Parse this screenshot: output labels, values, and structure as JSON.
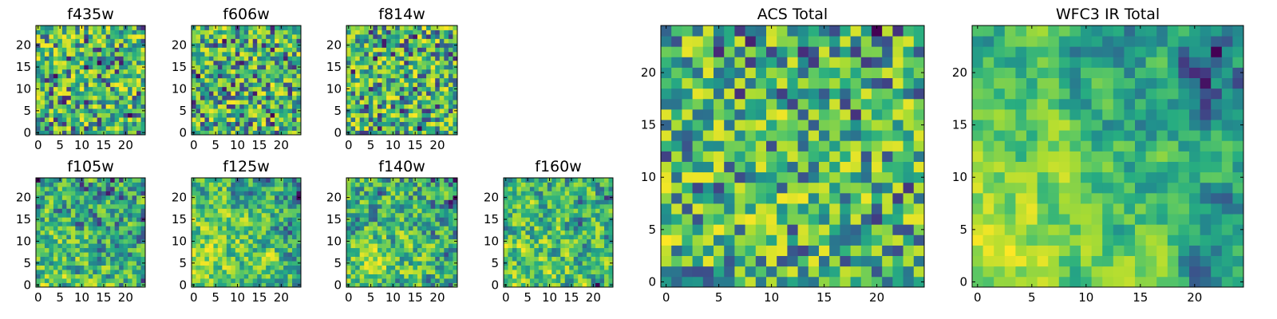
{
  "chart_data": [
    {
      "type": "heatmap",
      "title": "f435w",
      "xticks": [
        0,
        5,
        10,
        15,
        20
      ],
      "yticks": [
        0,
        5,
        10,
        15,
        20
      ],
      "xlim": [
        -0.5,
        24.5
      ],
      "ylim": [
        -0.5,
        24.5
      ],
      "grid_size": 25,
      "colormap": "viridis",
      "seed": 11,
      "smoothing": 0,
      "gradient": 0
    },
    {
      "type": "heatmap",
      "title": "f606w",
      "xticks": [
        0,
        5,
        10,
        15,
        20
      ],
      "yticks": [
        0,
        5,
        10,
        15,
        20
      ],
      "xlim": [
        -0.5,
        24.5
      ],
      "ylim": [
        -0.5,
        24.5
      ],
      "grid_size": 25,
      "colormap": "viridis",
      "seed": 23,
      "smoothing": 0,
      "gradient": 0
    },
    {
      "type": "heatmap",
      "title": "f814w",
      "xticks": [
        0,
        5,
        10,
        15,
        20
      ],
      "yticks": [
        0,
        5,
        10,
        15,
        20
      ],
      "xlim": [
        -0.5,
        24.5
      ],
      "ylim": [
        -0.5,
        24.5
      ],
      "grid_size": 25,
      "colormap": "viridis",
      "seed": 37,
      "smoothing": 0,
      "gradient": 0
    },
    {
      "type": "heatmap",
      "title": "f105w",
      "xticks": [
        0,
        5,
        10,
        15,
        20
      ],
      "yticks": [
        0,
        5,
        10,
        15,
        20
      ],
      "xlim": [
        -0.5,
        24.5
      ],
      "ylim": [
        -0.5,
        24.5
      ],
      "grid_size": 25,
      "colormap": "viridis",
      "seed": 41,
      "smoothing": 1,
      "gradient": 0.3
    },
    {
      "type": "heatmap",
      "title": "f125w",
      "xticks": [
        0,
        5,
        10,
        15,
        20
      ],
      "yticks": [
        0,
        5,
        10,
        15,
        20
      ],
      "xlim": [
        -0.5,
        24.5
      ],
      "ylim": [
        -0.5,
        24.5
      ],
      "grid_size": 25,
      "colormap": "viridis",
      "seed": 53,
      "smoothing": 1,
      "gradient": 0.3
    },
    {
      "type": "heatmap",
      "title": "f140w",
      "xticks": [
        0,
        5,
        10,
        15,
        20
      ],
      "yticks": [
        0,
        5,
        10,
        15,
        20
      ],
      "xlim": [
        -0.5,
        24.5
      ],
      "ylim": [
        -0.5,
        24.5
      ],
      "grid_size": 25,
      "colormap": "viridis",
      "seed": 67,
      "smoothing": 1,
      "gradient": 0.3
    },
    {
      "type": "heatmap",
      "title": "f160w",
      "xticks": [
        0,
        5,
        10,
        15,
        20
      ],
      "yticks": [
        0,
        5,
        10,
        15,
        20
      ],
      "xlim": [
        -0.5,
        24.5
      ],
      "ylim": [
        -0.5,
        24.5
      ],
      "grid_size": 25,
      "colormap": "viridis",
      "seed": 79,
      "smoothing": 1,
      "gradient": 0.3
    },
    {
      "type": "heatmap",
      "title": "ACS Total",
      "xticks": [
        0,
        5,
        10,
        15,
        20
      ],
      "yticks": [
        0,
        5,
        10,
        15,
        20
      ],
      "xlim": [
        -0.5,
        24.5
      ],
      "ylim": [
        -0.5,
        24.5
      ],
      "grid_size": 25,
      "colormap": "viridis",
      "seed": 97,
      "smoothing": 0,
      "gradient": 0.1
    },
    {
      "type": "heatmap",
      "title": "WFC3 IR Total",
      "xticks": [
        0,
        5,
        10,
        15,
        20
      ],
      "yticks": [
        0,
        5,
        10,
        15,
        20
      ],
      "xlim": [
        -0.5,
        24.5
      ],
      "ylim": [
        -0.5,
        24.5
      ],
      "grid_size": 25,
      "colormap": "viridis",
      "seed": 131,
      "smoothing": 2,
      "gradient": 0.55
    }
  ]
}
